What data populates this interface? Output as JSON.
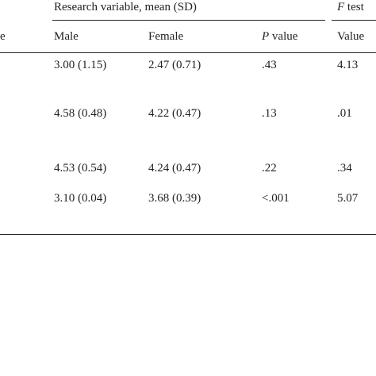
{
  "header": {
    "group": "Research variable, mean (SD)",
    "f_test": {
      "italic": "F",
      "rest": "test"
    },
    "columns": {
      "cut": "e",
      "male": "Male",
      "female": "Female",
      "p_value": {
        "italic": "P",
        "rest": "value"
      },
      "value": "Value"
    }
  },
  "table": {
    "rows": [
      [
        "3.00 (1.15)",
        "2.47 (0.71)",
        ".43",
        "4.13"
      ],
      [
        "4.58 (0.48)",
        "4.22 (0.47)",
        ".13",
        ".01"
      ],
      [
        "4.53 (0.54)",
        "4.24 (0.47)",
        ".22",
        ".34"
      ],
      [
        "3.10 (0.04)",
        "3.68 (0.39)",
        "<.001",
        "5.07"
      ]
    ]
  }
}
